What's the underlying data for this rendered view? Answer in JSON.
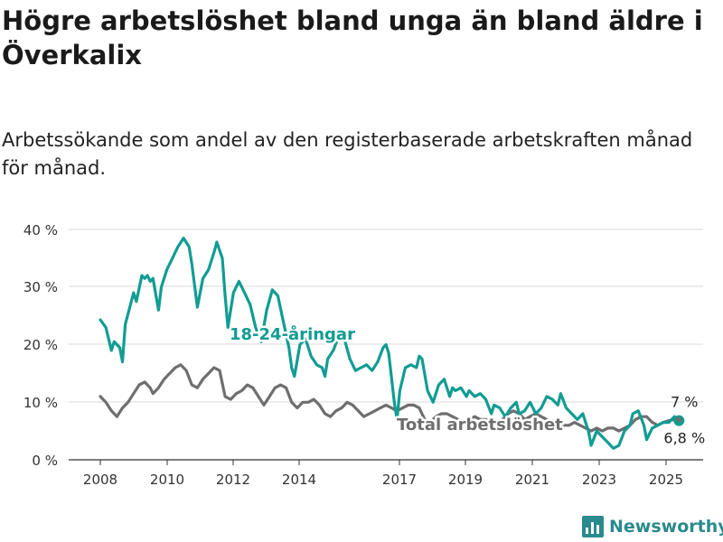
{
  "header": {
    "title": "Högre arbetslöshet bland unga än bland äldre i Överkalix",
    "subtitle": "Arbetssökande som andel av den registerbaserade arbetskraften månad för månad."
  },
  "brand": {
    "name": "Newsworthy",
    "icon": "bar-chart-logo-icon",
    "color": "#2a8a8c"
  },
  "chart_data": {
    "type": "line",
    "title": "",
    "xlabel": "",
    "ylabel": "",
    "x_ticks": [
      "2008",
      "2010",
      "2012",
      "2014",
      "2017",
      "2019",
      "2021",
      "2023",
      "2025"
    ],
    "y_ticks": [
      "0 %",
      "10 %",
      "20 %",
      "30 %",
      "40 %"
    ],
    "ylim": [
      0,
      40
    ],
    "xlim": [
      "2007-07",
      "2025-12"
    ],
    "grid": "horizontal",
    "legend": "inline labels on series",
    "series": [
      {
        "name": "18-24-åringar",
        "color": "#119c93",
        "last_value_label": "6,8 %",
        "points": [
          [
            "2008-01",
            24.3
          ],
          [
            "2008-03",
            23.0
          ],
          [
            "2008-05",
            19.0
          ],
          [
            "2008-06",
            20.5
          ],
          [
            "2008-08",
            19.5
          ],
          [
            "2008-09",
            17.0
          ],
          [
            "2008-10",
            23.5
          ],
          [
            "2009-01",
            29.0
          ],
          [
            "2009-02",
            27.5
          ],
          [
            "2009-04",
            32.0
          ],
          [
            "2009-05",
            31.5
          ],
          [
            "2009-06",
            32.0
          ],
          [
            "2009-07",
            31.0
          ],
          [
            "2009-08",
            31.5
          ],
          [
            "2009-10",
            26.0
          ],
          [
            "2009-11",
            30.0
          ],
          [
            "2010-01",
            33.0
          ],
          [
            "2010-03",
            35.0
          ],
          [
            "2010-05",
            37.0
          ],
          [
            "2010-07",
            38.5
          ],
          [
            "2010-09",
            37.0
          ],
          [
            "2010-10",
            34.0
          ],
          [
            "2010-12",
            26.5
          ],
          [
            "2011-02",
            31.5
          ],
          [
            "2011-04",
            33.0
          ],
          [
            "2011-06",
            36.0
          ],
          [
            "2011-07",
            37.8
          ],
          [
            "2011-09",
            35.0
          ],
          [
            "2011-10",
            28.5
          ],
          [
            "2011-11",
            23.0
          ],
          [
            "2012-01",
            29.0
          ],
          [
            "2012-03",
            31.0
          ],
          [
            "2012-05",
            29.0
          ],
          [
            "2012-07",
            27.0
          ],
          [
            "2012-09",
            23.0
          ],
          [
            "2012-11",
            20.5
          ],
          [
            "2013-01",
            26.0
          ],
          [
            "2013-03",
            29.5
          ],
          [
            "2013-05",
            28.5
          ],
          [
            "2013-07",
            24.0
          ],
          [
            "2013-09",
            19.5
          ],
          [
            "2013-10",
            16.0
          ],
          [
            "2013-11",
            14.5
          ],
          [
            "2014-01",
            20.0
          ],
          [
            "2014-03",
            21.0
          ],
          [
            "2014-05",
            18.0
          ],
          [
            "2014-07",
            16.5
          ],
          [
            "2014-09",
            16.0
          ],
          [
            "2014-10",
            14.5
          ],
          [
            "2014-11",
            17.5
          ],
          [
            "2015-01",
            19.0
          ],
          [
            "2015-03",
            21.5
          ],
          [
            "2015-05",
            21.0
          ],
          [
            "2015-07",
            17.5
          ],
          [
            "2015-09",
            15.5
          ],
          [
            "2015-11",
            16.0
          ],
          [
            "2016-01",
            16.5
          ],
          [
            "2016-03",
            15.5
          ],
          [
            "2016-05",
            17.0
          ],
          [
            "2016-07",
            19.5
          ],
          [
            "2016-08",
            20.0
          ],
          [
            "2016-09",
            18.5
          ],
          [
            "2016-11",
            10.0
          ],
          [
            "2016-12",
            7.0
          ],
          [
            "2017-01",
            12.0
          ],
          [
            "2017-03",
            16.0
          ],
          [
            "2017-05",
            16.5
          ],
          [
            "2017-07",
            16.0
          ],
          [
            "2017-08",
            18.0
          ],
          [
            "2017-09",
            17.5
          ],
          [
            "2017-11",
            12.0
          ],
          [
            "2018-01",
            10.0
          ],
          [
            "2018-03",
            13.0
          ],
          [
            "2018-05",
            14.0
          ],
          [
            "2018-07",
            11.0
          ],
          [
            "2018-08",
            12.5
          ],
          [
            "2018-09",
            12.0
          ],
          [
            "2018-11",
            12.5
          ],
          [
            "2019-01",
            11.0
          ],
          [
            "2019-02",
            12.0
          ],
          [
            "2019-04",
            11.0
          ],
          [
            "2019-06",
            11.5
          ],
          [
            "2019-08",
            10.5
          ],
          [
            "2019-10",
            8.0
          ],
          [
            "2019-11",
            9.5
          ],
          [
            "2020-01",
            9.0
          ],
          [
            "2020-03",
            7.5
          ],
          [
            "2020-05",
            9.0
          ],
          [
            "2020-07",
            10.0
          ],
          [
            "2020-08",
            8.0
          ],
          [
            "2020-10",
            8.5
          ],
          [
            "2020-12",
            10.0
          ],
          [
            "2021-02",
            8.0
          ],
          [
            "2021-04",
            9.0
          ],
          [
            "2021-06",
            11.0
          ],
          [
            "2021-08",
            10.5
          ],
          [
            "2021-10",
            9.5
          ],
          [
            "2021-11",
            11.5
          ],
          [
            "2022-01",
            9.0
          ],
          [
            "2022-03",
            8.0
          ],
          [
            "2022-05",
            7.0
          ],
          [
            "2022-07",
            8.0
          ],
          [
            "2022-08",
            6.5
          ],
          [
            "2022-09",
            5.0
          ],
          [
            "2022-10",
            2.5
          ],
          [
            "2022-12",
            5.0
          ],
          [
            "2023-02",
            4.0
          ],
          [
            "2023-04",
            3.0
          ],
          [
            "2023-06",
            2.0
          ],
          [
            "2023-08",
            2.5
          ],
          [
            "2023-10",
            5.0
          ],
          [
            "2023-12",
            6.0
          ],
          [
            "2024-01",
            8.0
          ],
          [
            "2024-03",
            8.5
          ],
          [
            "2024-05",
            6.0
          ],
          [
            "2024-06",
            3.5
          ],
          [
            "2024-08",
            5.5
          ],
          [
            "2024-10",
            6.0
          ],
          [
            "2024-12",
            6.5
          ],
          [
            "2025-02",
            6.5
          ],
          [
            "2025-04",
            7.5
          ],
          [
            "2025-05",
            6.8
          ]
        ]
      },
      {
        "name": "Total arbetslöshet",
        "color": "#6e6e6e",
        "last_value_label": "7 %",
        "points": [
          [
            "2008-01",
            11.0
          ],
          [
            "2008-03",
            10.0
          ],
          [
            "2008-05",
            8.5
          ],
          [
            "2008-07",
            7.5
          ],
          [
            "2008-09",
            9.0
          ],
          [
            "2008-11",
            10.0
          ],
          [
            "2009-01",
            11.5
          ],
          [
            "2009-03",
            13.0
          ],
          [
            "2009-05",
            13.5
          ],
          [
            "2009-07",
            12.5
          ],
          [
            "2009-08",
            11.5
          ],
          [
            "2009-10",
            12.5
          ],
          [
            "2009-12",
            14.0
          ],
          [
            "2010-02",
            15.0
          ],
          [
            "2010-04",
            16.0
          ],
          [
            "2010-06",
            16.5
          ],
          [
            "2010-08",
            15.5
          ],
          [
            "2010-10",
            13.0
          ],
          [
            "2010-12",
            12.5
          ],
          [
            "2011-02",
            14.0
          ],
          [
            "2011-04",
            15.0
          ],
          [
            "2011-06",
            16.0
          ],
          [
            "2011-08",
            15.5
          ],
          [
            "2011-10",
            11.0
          ],
          [
            "2011-12",
            10.5
          ],
          [
            "2012-02",
            11.5
          ],
          [
            "2012-04",
            12.0
          ],
          [
            "2012-06",
            13.0
          ],
          [
            "2012-08",
            12.5
          ],
          [
            "2012-10",
            11.0
          ],
          [
            "2012-12",
            9.5
          ],
          [
            "2013-02",
            11.0
          ],
          [
            "2013-04",
            12.5
          ],
          [
            "2013-06",
            13.0
          ],
          [
            "2013-08",
            12.5
          ],
          [
            "2013-10",
            10.0
          ],
          [
            "2013-12",
            9.0
          ],
          [
            "2014-02",
            10.0
          ],
          [
            "2014-04",
            10.0
          ],
          [
            "2014-06",
            10.5
          ],
          [
            "2014-08",
            9.5
          ],
          [
            "2014-10",
            8.0
          ],
          [
            "2014-12",
            7.5
          ],
          [
            "2015-02",
            8.5
          ],
          [
            "2015-04",
            9.0
          ],
          [
            "2015-06",
            10.0
          ],
          [
            "2015-08",
            9.5
          ],
          [
            "2015-10",
            8.5
          ],
          [
            "2015-12",
            7.5
          ],
          [
            "2016-02",
            8.0
          ],
          [
            "2016-04",
            8.5
          ],
          [
            "2016-06",
            9.0
          ],
          [
            "2016-08",
            9.5
          ],
          [
            "2016-10",
            9.0
          ],
          [
            "2016-12",
            8.5
          ],
          [
            "2017-02",
            9.0
          ],
          [
            "2017-04",
            9.5
          ],
          [
            "2017-06",
            9.5
          ],
          [
            "2017-08",
            9.0
          ],
          [
            "2017-10",
            7.0
          ],
          [
            "2017-12",
            6.5
          ],
          [
            "2018-02",
            7.5
          ],
          [
            "2018-04",
            8.0
          ],
          [
            "2018-06",
            8.0
          ],
          [
            "2018-08",
            7.5
          ],
          [
            "2018-10",
            7.0
          ],
          [
            "2018-12",
            6.5
          ],
          [
            "2019-02",
            7.0
          ],
          [
            "2019-04",
            7.5
          ],
          [
            "2019-06",
            7.0
          ],
          [
            "2019-08",
            7.0
          ],
          [
            "2019-10",
            6.5
          ],
          [
            "2019-12",
            6.5
          ],
          [
            "2020-02",
            7.0
          ],
          [
            "2020-04",
            8.0
          ],
          [
            "2020-06",
            8.5
          ],
          [
            "2020-08",
            8.0
          ],
          [
            "2020-10",
            7.0
          ],
          [
            "2020-12",
            7.5
          ],
          [
            "2021-02",
            8.0
          ],
          [
            "2021-04",
            7.5
          ],
          [
            "2021-06",
            7.0
          ],
          [
            "2021-08",
            6.5
          ],
          [
            "2021-10",
            6.5
          ],
          [
            "2021-12",
            6.0
          ],
          [
            "2022-02",
            6.0
          ],
          [
            "2022-04",
            6.5
          ],
          [
            "2022-06",
            6.0
          ],
          [
            "2022-08",
            5.5
          ],
          [
            "2022-10",
            5.0
          ],
          [
            "2022-12",
            5.5
          ],
          [
            "2023-02",
            5.0
          ],
          [
            "2023-04",
            5.5
          ],
          [
            "2023-06",
            5.5
          ],
          [
            "2023-08",
            5.0
          ],
          [
            "2023-10",
            5.5
          ],
          [
            "2023-12",
            6.0
          ],
          [
            "2024-02",
            7.0
          ],
          [
            "2024-04",
            7.5
          ],
          [
            "2024-06",
            7.5
          ],
          [
            "2024-08",
            6.5
          ],
          [
            "2024-10",
            6.0
          ],
          [
            "2024-12",
            6.5
          ],
          [
            "2025-02",
            6.8
          ],
          [
            "2025-04",
            7.0
          ],
          [
            "2025-05",
            7.0
          ]
        ]
      }
    ],
    "annotations": [
      {
        "text": "18-24-åringar",
        "series": "18-24-åringar"
      },
      {
        "text": "Total arbetslöshet",
        "series": "Total arbetslöshet"
      }
    ]
  }
}
